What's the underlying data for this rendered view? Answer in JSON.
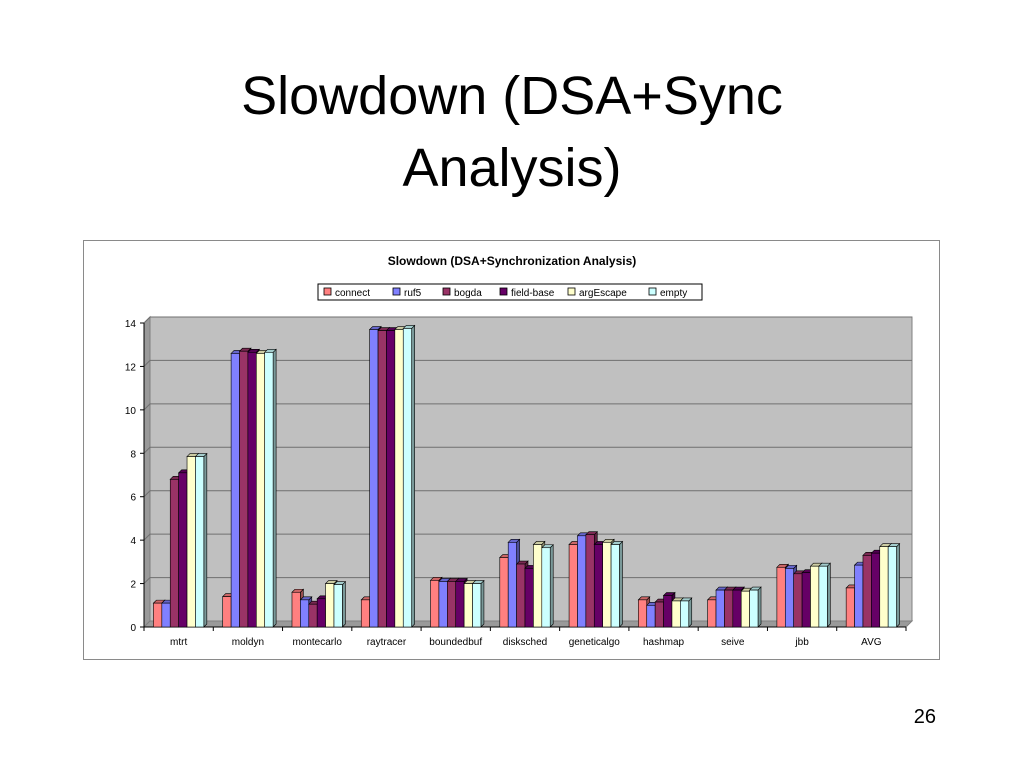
{
  "slide": {
    "title_line1": "Slowdown (DSA+Sync",
    "title_line2": "Analysis)",
    "page_number": "26"
  },
  "chart_data": {
    "type": "bar",
    "title": "Slowdown (DSA+Synchronization Analysis)",
    "xlabel": "",
    "ylabel": "",
    "ylim": [
      0,
      14
    ],
    "yticks": [
      0,
      2,
      4,
      6,
      8,
      10,
      12,
      14
    ],
    "grid": true,
    "legend_position": "top",
    "categories": [
      "mtrt",
      "moldyn",
      "montecarlo",
      "raytracer",
      "boundedbuf",
      "disksched",
      "geneticalgo",
      "hashmap",
      "seive",
      "jbb",
      "AVG"
    ],
    "series": [
      {
        "name": "connect",
        "color": "#ff8080",
        "values": [
          1.1,
          1.4,
          1.6,
          1.25,
          2.15,
          3.2,
          3.8,
          1.25,
          1.25,
          2.75,
          1.8
        ]
      },
      {
        "name": "ruf5",
        "color": "#8080ff",
        "values": [
          1.1,
          12.6,
          1.25,
          13.7,
          2.1,
          3.9,
          4.2,
          1.0,
          1.7,
          2.7,
          2.85
        ]
      },
      {
        "name": "bogda",
        "color": "#993366",
        "values": [
          6.8,
          12.7,
          1.05,
          13.65,
          2.1,
          2.9,
          4.25,
          1.15,
          1.7,
          2.45,
          3.3
        ]
      },
      {
        "name": "field-base",
        "color": "#660066",
        "values": [
          7.1,
          12.65,
          1.3,
          13.65,
          2.1,
          2.7,
          3.8,
          1.45,
          1.7,
          2.5,
          3.4
        ]
      },
      {
        "name": "argEscape",
        "color": "#ffffcc",
        "values": [
          7.85,
          12.6,
          2.0,
          13.7,
          2.0,
          3.8,
          3.9,
          1.2,
          1.65,
          2.8,
          3.7
        ]
      },
      {
        "name": "empty",
        "color": "#ccffff",
        "values": [
          7.85,
          12.65,
          1.95,
          13.75,
          2.0,
          3.65,
          3.8,
          1.2,
          1.7,
          2.8,
          3.7
        ]
      }
    ],
    "colors": {
      "plot_background": "#c0c0c0",
      "gridline": "#6f6f6f",
      "bar_outline": "#000000"
    }
  }
}
